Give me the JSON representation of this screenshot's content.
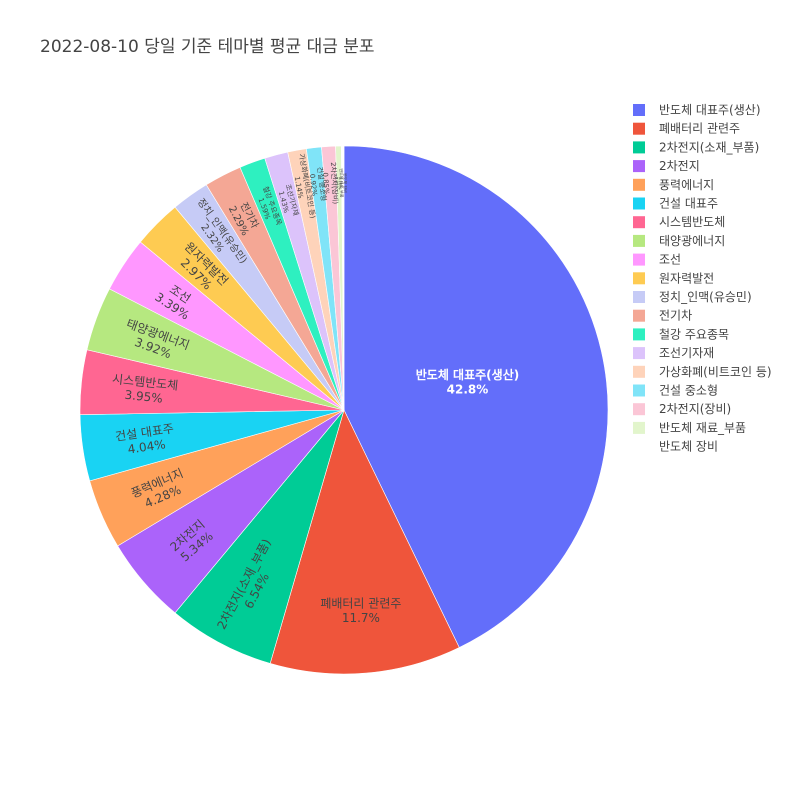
{
  "chart_data": {
    "type": "pie",
    "title": "2022-08-10 당일 기준 테마별 평균 대금 분포",
    "slices": [
      {
        "label": "반도체 대표주(생산)",
        "value": 42.8,
        "text": "42.8%",
        "color": "#636efa"
      },
      {
        "label": "폐배터리 관련주",
        "value": 11.7,
        "text": "11.7%",
        "color": "#EF553B"
      },
      {
        "label": "2차전지(소재_부품)",
        "value": 6.54,
        "text": "6.54%",
        "color": "#00cc96"
      },
      {
        "label": "2차전지",
        "value": 5.34,
        "text": "5.34%",
        "color": "#ab63fa"
      },
      {
        "label": "풍력에너지",
        "value": 4.28,
        "text": "4.28%",
        "color": "#FFA15A"
      },
      {
        "label": "건설 대표주",
        "value": 4.04,
        "text": "4.04%",
        "color": "#19d3f3"
      },
      {
        "label": "시스템반도체",
        "value": 3.95,
        "text": "3.95%",
        "color": "#FF6692"
      },
      {
        "label": "태양광에너지",
        "value": 3.92,
        "text": "3.92%",
        "color": "#B6E880"
      },
      {
        "label": "조선",
        "value": 3.39,
        "text": "3.39%",
        "color": "#FF97FF"
      },
      {
        "label": "원자력발전",
        "value": 2.97,
        "text": "2.97%",
        "color": "#FECB52"
      },
      {
        "label": "정치_인맥(유승민)",
        "value": 2.32,
        "text": "2.32%",
        "color": "#c6cbf6"
      },
      {
        "label": "전기차",
        "value": 2.29,
        "text": "2.29%",
        "color": "#f4a795"
      },
      {
        "label": "철강 주요종목",
        "value": 1.59,
        "text": "1.59%",
        "color": "#2ef0c0"
      },
      {
        "label": "조선기자재",
        "value": 1.43,
        "text": "1.43%",
        "color": "#dcc3fb"
      },
      {
        "label": "가상화폐(비트코인 등)",
        "value": 1.14,
        "text": "1.14%",
        "color": "#fed3ba"
      },
      {
        "label": "건설 중소형",
        "value": 0.92,
        "text": "0.92%",
        "color": "#80e4f8"
      },
      {
        "label": "2차전지(장비)",
        "value": 0.85,
        "text": "0.85%",
        "color": "#fbc6d6"
      },
      {
        "label": "반도체 재료_부품",
        "value": 0.35,
        "text": "0.35%",
        "color": "#e2f5cc"
      },
      {
        "label": "반도체 장비",
        "value": 0.16,
        "text": "0.16%",
        "color": "#ffffff"
      }
    ]
  }
}
